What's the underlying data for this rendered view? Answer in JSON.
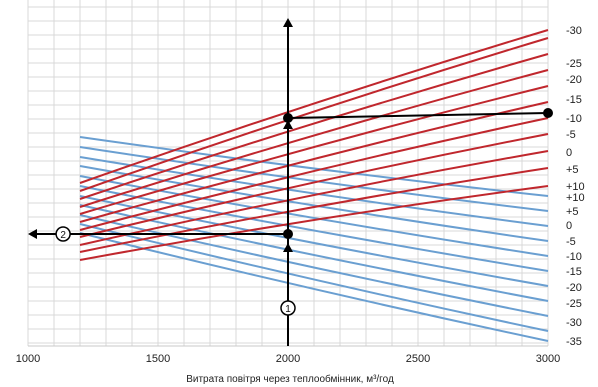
{
  "chart_data": {
    "type": "line",
    "xlabel": "Витрата повітря через теплообмінник, м³/год",
    "xlim": [
      1000,
      3000
    ],
    "x_ticks": [
      "1000",
      "1500",
      "2000",
      "2500",
      "3000"
    ],
    "grid": true,
    "line_x_range": [
      1200,
      3000
    ],
    "series_colors": {
      "red": "#c0272d",
      "blue": "#6a9fd1",
      "annotation": "#000000"
    },
    "red_series_right_labels": [
      "-30",
      "-25",
      "-20",
      "-15",
      "-10",
      "-5",
      "0",
      "+5",
      "+10"
    ],
    "blue_series_right_labels": [
      "+10",
      "+5",
      "0",
      "-5",
      "-10",
      "-15",
      "-20",
      "-25",
      "-30",
      "-35"
    ],
    "annotation": {
      "operating_airflow": 2000,
      "marker_1_label": "1",
      "marker_2_label": "2",
      "route_right_to": 3000,
      "route_left_to": 1000
    }
  }
}
